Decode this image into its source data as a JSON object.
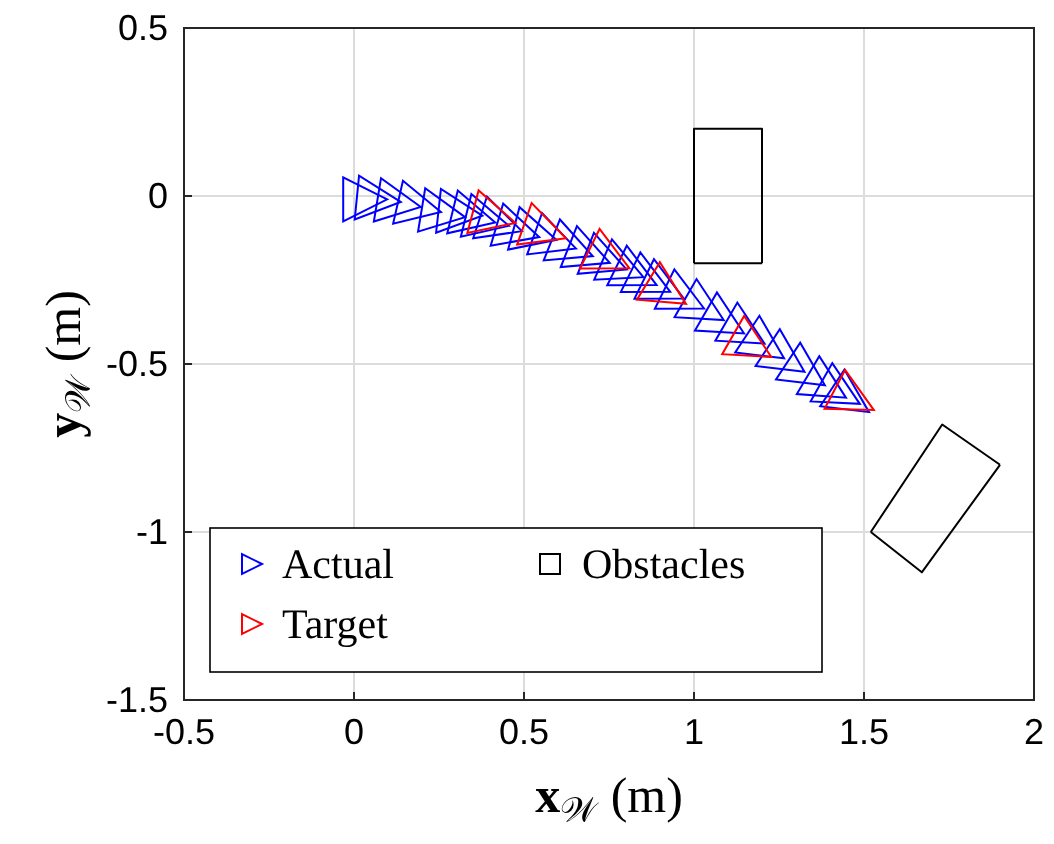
{
  "chart_data": {
    "type": "scatter",
    "xlabel": "x$_{𝒲}$ (m)",
    "ylabel": "y$_{𝒲}$ (m)",
    "xlim": [
      -0.5,
      2
    ],
    "ylim": [
      -1.5,
      0.5
    ],
    "xticks": [
      -0.5,
      0,
      0.5,
      1,
      1.5,
      2
    ],
    "yticks": [
      -1.5,
      -1,
      -0.5,
      0,
      0.5
    ],
    "grid": true,
    "legend": "bottom left",
    "series": [
      {
        "name": "Actual",
        "color": "#0000ff",
        "marker": "triangle",
        "x": [
          0.02,
          0.06,
          0.12,
          0.18,
          0.25,
          0.3,
          0.34,
          0.38,
          0.42,
          0.47,
          0.52,
          0.58,
          0.63,
          0.68,
          0.73,
          0.78,
          0.82,
          0.86,
          0.9,
          0.96,
          1.02,
          1.08,
          1.14,
          1.2,
          1.26,
          1.32,
          1.38,
          1.42,
          1.45
        ],
        "values": [
          -0.01,
          -0.01,
          -0.02,
          -0.03,
          -0.05,
          -0.05,
          -0.06,
          -0.07,
          -0.08,
          -0.1,
          -0.11,
          -0.13,
          -0.15,
          -0.17,
          -0.19,
          -0.21,
          -0.23,
          -0.25,
          -0.27,
          -0.3,
          -0.33,
          -0.37,
          -0.4,
          -0.44,
          -0.48,
          -0.52,
          -0.56,
          -0.58,
          -0.6
        ]
      },
      {
        "name": "Target",
        "color": "#ff0000",
        "marker": "triangle",
        "x": [
          0.4,
          0.55,
          0.74,
          0.91,
          1.16,
          1.46
        ],
        "values": [
          -0.06,
          -0.1,
          -0.18,
          -0.28,
          -0.44,
          -0.6
        ]
      },
      {
        "name": "Obstacles",
        "color": "#000000",
        "type": "line",
        "marker": "none",
        "x": [
          1,
          1,
          1.2,
          1.2
        ],
        "values": [
          -0.2,
          0.2,
          0.2,
          -0.2
        ]
      },
      {
        "color": "#000000",
        "type": "line",
        "marker": "none",
        "x": [
          1,
          1.2
        ],
        "values": [
          -0.2,
          -0.2
        ]
      },
      {
        "color": "#000000",
        "type": "line",
        "marker": "none",
        "x": [
          1.52,
          1.73,
          1.9
        ],
        "values": [
          -1.0,
          -0.68,
          -0.8
        ]
      },
      {
        "color": "#000000",
        "type": "line",
        "marker": "none",
        "x": [
          1.52,
          1.67,
          1.9
        ],
        "values": [
          -1.0,
          -1.12,
          -0.8
        ]
      }
    ]
  }
}
